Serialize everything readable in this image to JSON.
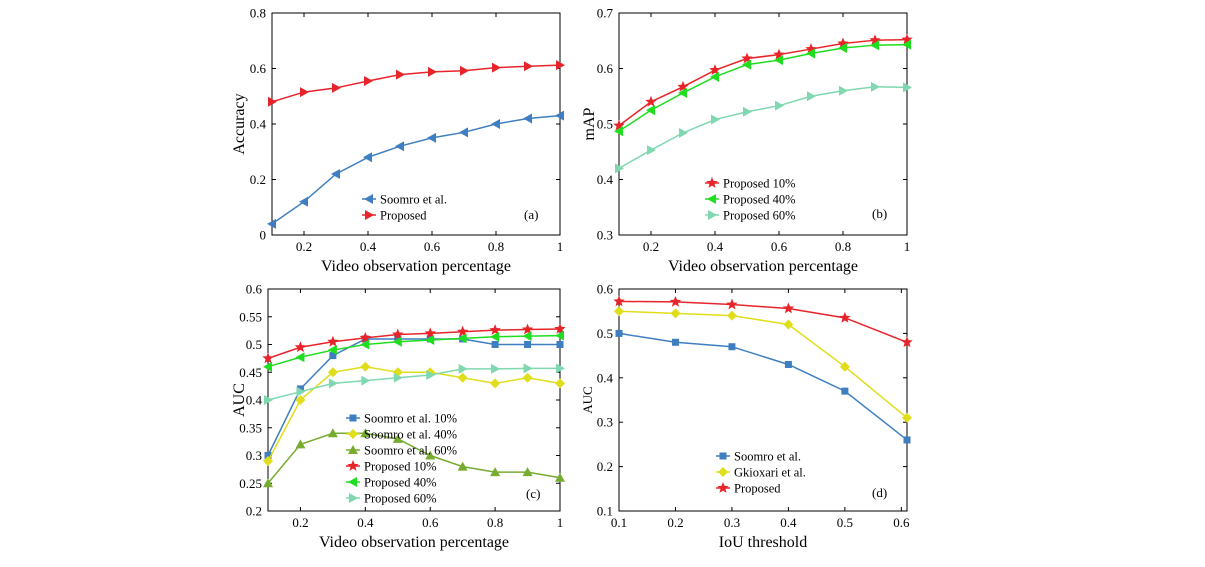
{
  "chart_data": [
    {
      "type": "line",
      "panel_label": "(a)",
      "xlabel": "Video observation percentage",
      "ylabel": "Accuracy",
      "xlim": [
        0.1,
        1
      ],
      "ylim": [
        0,
        0.8
      ],
      "xticks": [
        0.2,
        0.4,
        0.6,
        0.8,
        1
      ],
      "xtick_labels": [
        "0.2",
        "0.4",
        "0.6",
        "0.8",
        "1"
      ],
      "yticks": [
        0,
        0.2,
        0.4,
        0.6,
        0.8
      ],
      "ytick_labels": [
        "0",
        "0.2",
        "0.4",
        "0.6",
        "0.8"
      ],
      "legend_position": "bottom-center",
      "x": [
        0.1,
        0.2,
        0.3,
        0.4,
        0.5,
        0.6,
        0.7,
        0.8,
        0.9,
        1.0
      ],
      "series": [
        {
          "name": "Soomro et al.",
          "color": "#3f7fc1",
          "marker": "triangle-left",
          "values": [
            0.04,
            0.12,
            0.22,
            0.28,
            0.32,
            0.35,
            0.37,
            0.4,
            0.42,
            0.43
          ]
        },
        {
          "name": "Proposed",
          "color": "#e8242b",
          "marker": "triangle-right",
          "values": [
            0.48,
            0.515,
            0.53,
            0.555,
            0.578,
            0.588,
            0.592,
            0.603,
            0.608,
            0.612
          ]
        }
      ]
    },
    {
      "type": "line",
      "panel_label": "(b)",
      "xlabel": "Video observation percentage",
      "ylabel": "mAP",
      "xlim": [
        0.1,
        1
      ],
      "ylim": [
        0.3,
        0.7
      ],
      "xticks": [
        0.2,
        0.4,
        0.6,
        0.8,
        1
      ],
      "xtick_labels": [
        "0.2",
        "0.4",
        "0.6",
        "0.8",
        "1"
      ],
      "yticks": [
        0.3,
        0.4,
        0.5,
        0.6,
        0.7
      ],
      "ytick_labels": [
        "0.3",
        "0.4",
        "0.5",
        "0.6",
        "0.7"
      ],
      "legend_position": "bottom-center",
      "x": [
        0.1,
        0.2,
        0.3,
        0.4,
        0.5,
        0.6,
        0.7,
        0.8,
        0.9,
        1.0
      ],
      "series": [
        {
          "name": "Proposed 10%",
          "color": "#e8242b",
          "marker": "star",
          "values": [
            0.497,
            0.54,
            0.567,
            0.597,
            0.618,
            0.625,
            0.635,
            0.645,
            0.651,
            0.652
          ]
        },
        {
          "name": "Proposed 40%",
          "color": "#1fdd1f",
          "marker": "triangle-left",
          "values": [
            0.487,
            0.525,
            0.556,
            0.585,
            0.607,
            0.615,
            0.627,
            0.637,
            0.642,
            0.643
          ]
        },
        {
          "name": "Proposed 60%",
          "color": "#7fd8b0",
          "marker": "triangle-right",
          "values": [
            0.42,
            0.453,
            0.484,
            0.508,
            0.522,
            0.533,
            0.55,
            0.56,
            0.567,
            0.566
          ]
        }
      ]
    },
    {
      "type": "line",
      "panel_label": "(c)",
      "xlabel": "Video observation percentage",
      "ylabel": "AUC",
      "xlim": [
        0.1,
        1
      ],
      "ylim": [
        0.2,
        0.6
      ],
      "xticks": [
        0.2,
        0.4,
        0.6,
        0.8,
        1
      ],
      "xtick_labels": [
        "0.2",
        "0.4",
        "0.6",
        "0.8",
        "1"
      ],
      "yticks": [
        0.2,
        0.25,
        0.3,
        0.35,
        0.4,
        0.45,
        0.5,
        0.55,
        0.6
      ],
      "ytick_labels": [
        "0.2",
        "0.25",
        "0.3",
        "0.35",
        "0.4",
        "0.45",
        "0.5",
        "0.55",
        "0.6"
      ],
      "legend_position": "bottom-center",
      "x": [
        0.1,
        0.2,
        0.3,
        0.4,
        0.5,
        0.6,
        0.7,
        0.8,
        0.9,
        1.0
      ],
      "series": [
        {
          "name": "Soomro et al. 10%",
          "color": "#3f7fc1",
          "marker": "square",
          "values": [
            0.3,
            0.42,
            0.48,
            0.51,
            0.51,
            0.51,
            0.51,
            0.5,
            0.5,
            0.5
          ]
        },
        {
          "name": "Soomro et al. 40%",
          "color": "#e0de1a",
          "marker": "diamond",
          "values": [
            0.29,
            0.4,
            0.45,
            0.46,
            0.45,
            0.45,
            0.44,
            0.43,
            0.44,
            0.43
          ]
        },
        {
          "name": "Soomro et al. 60%",
          "color": "#77ac30",
          "marker": "triangle-up",
          "values": [
            0.25,
            0.32,
            0.34,
            0.34,
            0.33,
            0.3,
            0.28,
            0.27,
            0.27,
            0.26
          ]
        },
        {
          "name": "Proposed 10%",
          "color": "#e8242b",
          "marker": "star",
          "values": [
            0.475,
            0.495,
            0.505,
            0.512,
            0.518,
            0.52,
            0.523,
            0.526,
            0.527,
            0.528
          ]
        },
        {
          "name": "Proposed 40%",
          "color": "#1fdd1f",
          "marker": "triangle-left",
          "values": [
            0.46,
            0.477,
            0.49,
            0.5,
            0.505,
            0.508,
            0.511,
            0.514,
            0.515,
            0.516
          ]
        },
        {
          "name": "Proposed 60%",
          "color": "#7fd8b0",
          "marker": "triangle-right",
          "values": [
            0.4,
            0.415,
            0.43,
            0.435,
            0.44,
            0.445,
            0.456,
            0.456,
            0.457,
            0.457
          ]
        }
      ]
    },
    {
      "type": "line",
      "panel_label": "(d)",
      "xlabel": "IoU threshold",
      "ylabel": "AUC",
      "xlim": [
        0.1,
        0.61
      ],
      "ylim": [
        0.1,
        0.6
      ],
      "xticks": [
        0.1,
        0.2,
        0.3,
        0.4,
        0.5,
        0.6
      ],
      "xtick_labels": [
        "0.1",
        "0.2",
        "0.3",
        "0.4",
        "0.5",
        "0.6"
      ],
      "yticks": [
        0.1,
        0.2,
        0.3,
        0.4,
        0.5,
        0.6
      ],
      "ytick_labels": [
        "0.1",
        "0.2",
        "0.3",
        "0.4",
        "0.5",
        "0.6"
      ],
      "legend_position": "bottom-left",
      "x": [
        0.1,
        0.2,
        0.3,
        0.4,
        0.5,
        0.61
      ],
      "series": [
        {
          "name": "Soomro et al.",
          "color": "#3f7fc1",
          "marker": "square",
          "values": [
            0.5,
            0.48,
            0.47,
            0.43,
            0.37,
            0.26
          ]
        },
        {
          "name": "Gkioxari et al.",
          "color": "#e0de1a",
          "marker": "diamond",
          "values": [
            0.55,
            0.545,
            0.54,
            0.52,
            0.425,
            0.31
          ]
        },
        {
          "name": "Proposed",
          "color": "#e8242b",
          "marker": "star",
          "values": [
            0.572,
            0.571,
            0.565,
            0.556,
            0.535,
            0.48
          ]
        }
      ]
    }
  ]
}
